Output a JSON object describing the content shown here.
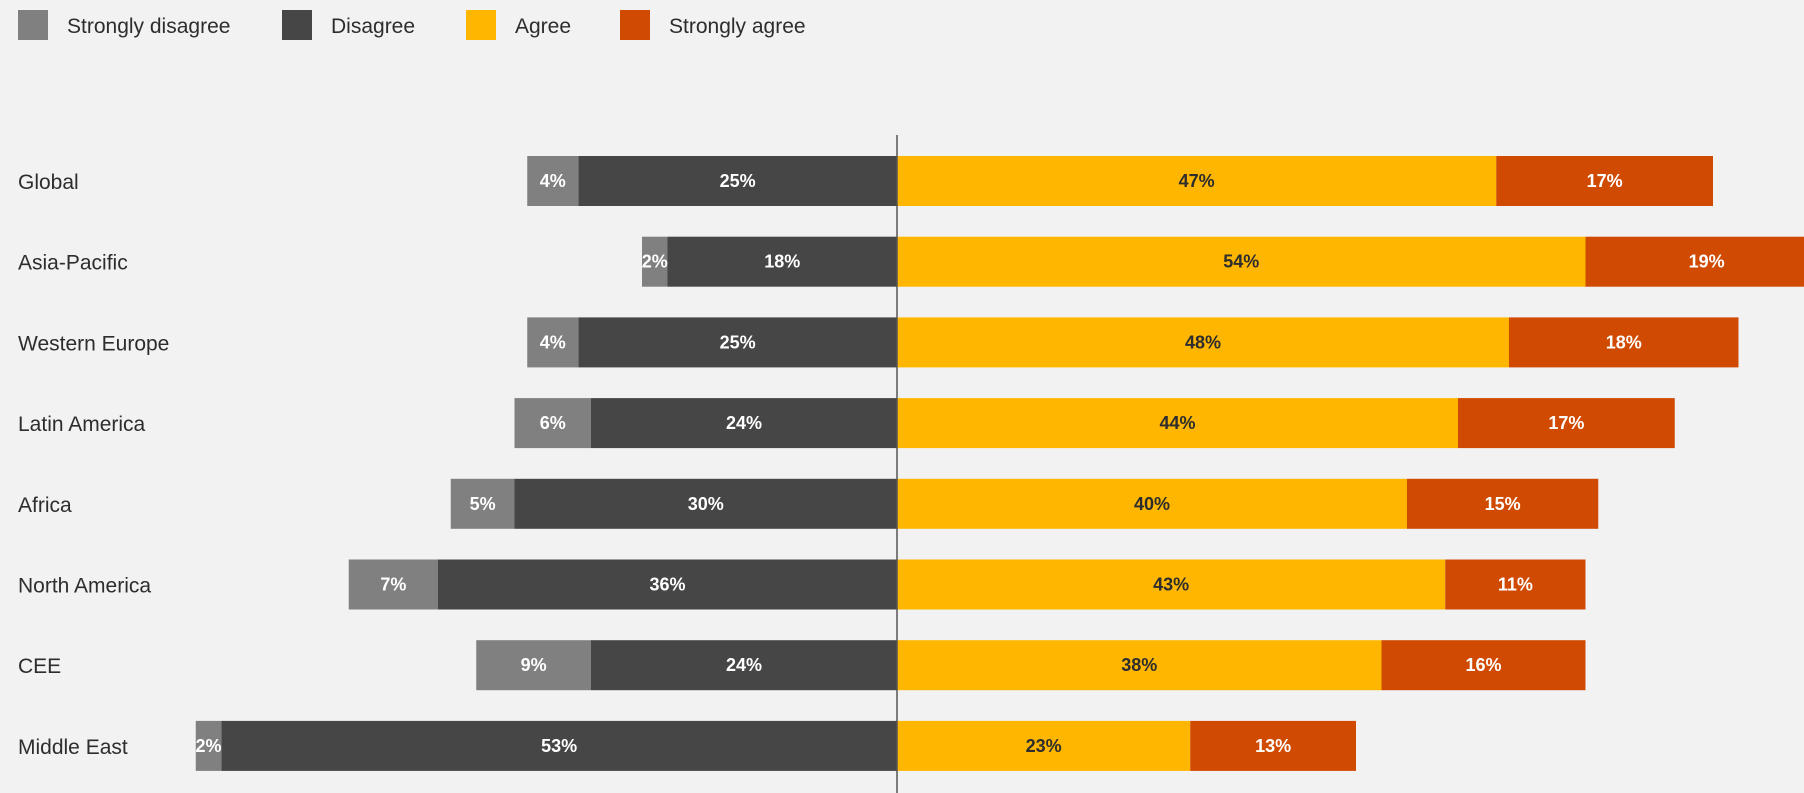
{
  "chart_data": {
    "type": "bar",
    "orientation": "horizontal",
    "stacking": "diverging",
    "title": "",
    "xlabel": "",
    "ylabel": "",
    "legend_position": "top-left",
    "categories": [
      "Global",
      "Asia-Pacific",
      "Western Europe",
      "Latin America",
      "Africa",
      "North America",
      "CEE",
      "Middle East"
    ],
    "series": [
      {
        "name": "Strongly disagree",
        "side": "negative",
        "color": "#808080",
        "label_color": "#ffffff",
        "values": [
          4,
          2,
          4,
          6,
          5,
          7,
          9,
          2
        ]
      },
      {
        "name": "Disagree",
        "side": "negative",
        "color": "#464646",
        "label_color": "#ffffff",
        "values": [
          25,
          18,
          25,
          24,
          30,
          36,
          24,
          53
        ]
      },
      {
        "name": "Agree",
        "side": "positive",
        "color": "#ffb600",
        "label_color": "#2d2d2d",
        "values": [
          47,
          54,
          48,
          44,
          40,
          43,
          38,
          23
        ]
      },
      {
        "name": "Strongly agree",
        "side": "positive",
        "color": "#d04a02",
        "label_color": "#ffffff",
        "values": [
          17,
          19,
          18,
          17,
          15,
          11,
          16,
          13
        ]
      }
    ],
    "data_labels": [
      [
        "4%",
        "2%",
        "4%",
        "6%",
        "5%",
        "7%",
        "9%",
        "2%"
      ],
      [
        "25%",
        "18%",
        "25%",
        "24%",
        "30%",
        "36%",
        "24%",
        "53%"
      ],
      [
        "47%",
        "54%",
        "48%",
        "44%",
        "40%",
        "43%",
        "38%",
        "23%"
      ],
      [
        "17%",
        "19%",
        "18%",
        "17%",
        "15%",
        "11%",
        "16%",
        "13%"
      ]
    ],
    "grid": false
  }
}
